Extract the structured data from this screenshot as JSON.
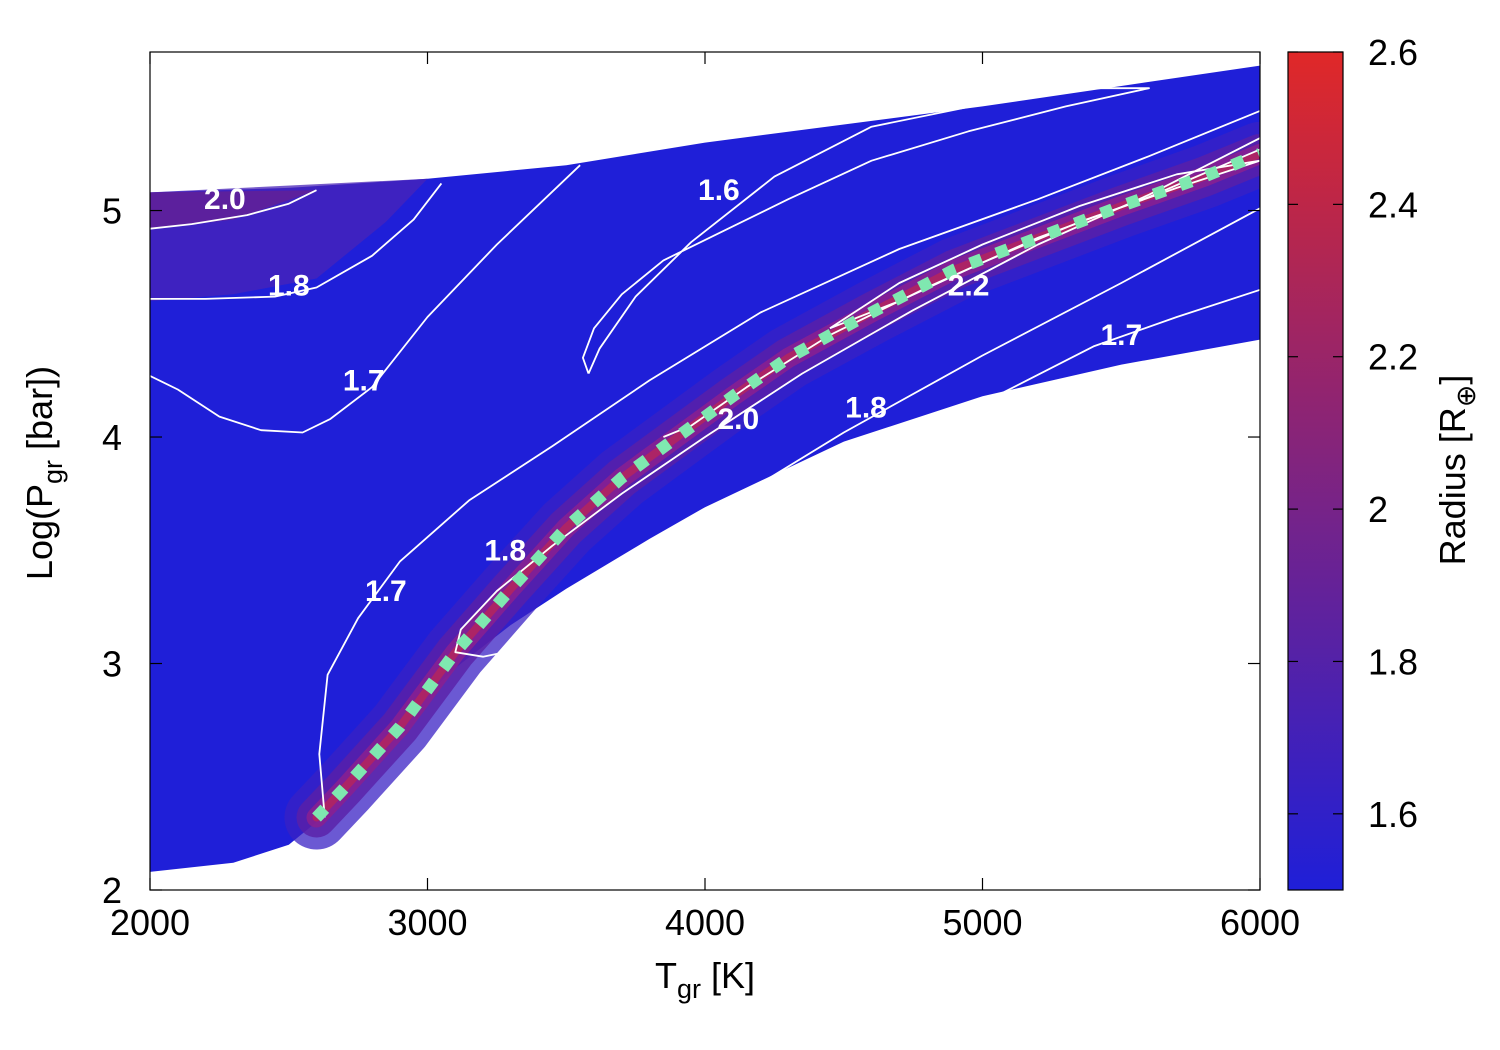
{
  "chart_data": {
    "type": "heatmap",
    "title": "",
    "xlabel": {
      "main": "T",
      "sub": "gr",
      "unit": " [K]"
    },
    "ylabel": {
      "pre": "Log(P",
      "sub": "gr",
      "post": " [bar])"
    },
    "colorbar_label": {
      "main": "Radius [R",
      "sub": "⊕",
      "post": "]"
    },
    "xlim": [
      2000,
      6000
    ],
    "ylim": [
      2,
      5.7
    ],
    "clim": [
      1.5,
      2.6
    ],
    "xticks": [
      2000,
      3000,
      4000,
      5000,
      6000
    ],
    "yticks": [
      2,
      3,
      4,
      5
    ],
    "cticks": [
      1.6,
      1.8,
      2,
      2.2,
      2.4,
      2.6
    ],
    "tick_labels": {
      "x": [
        "2000",
        "3000",
        "4000",
        "5000",
        "6000"
      ],
      "y": [
        "2",
        "3",
        "4",
        "5"
      ],
      "c": [
        "1.6",
        "1.8",
        "2",
        "2.2",
        "2.4",
        "2.6"
      ]
    },
    "colors": {
      "low": "#1f1fd8",
      "high": "#e02828",
      "contour": "#ffffff",
      "ridge_marker": "#7fe8b0"
    },
    "domain": {
      "upper": [
        [
          2000,
          5.08
        ],
        [
          2500,
          5.1
        ],
        [
          3000,
          5.14
        ],
        [
          3500,
          5.2
        ],
        [
          4000,
          5.3
        ],
        [
          4500,
          5.38
        ],
        [
          5000,
          5.46
        ],
        [
          5500,
          5.55
        ],
        [
          6000,
          5.64
        ]
      ],
      "lower": [
        [
          2000,
          2.08
        ],
        [
          2300,
          2.12
        ],
        [
          2500,
          2.2
        ],
        [
          2600,
          2.3
        ],
        [
          2700,
          2.47
        ],
        [
          2900,
          2.75
        ],
        [
          3100,
          2.98
        ],
        [
          3300,
          3.17
        ],
        [
          3500,
          3.33
        ],
        [
          3800,
          3.55
        ],
        [
          4000,
          3.69
        ],
        [
          4500,
          3.98
        ],
        [
          5000,
          4.18
        ],
        [
          5500,
          4.32
        ],
        [
          6000,
          4.43
        ]
      ]
    },
    "ridge_line": [
      [
        2600,
        2.32
      ],
      [
        2700,
        2.45
      ],
      [
        2900,
        2.72
      ],
      [
        3100,
        3.05
      ],
      [
        3300,
        3.33
      ],
      [
        3500,
        3.6
      ],
      [
        3700,
        3.82
      ],
      [
        3900,
        4.0
      ],
      [
        4100,
        4.18
      ],
      [
        4300,
        4.35
      ],
      [
        4600,
        4.55
      ],
      [
        4900,
        4.74
      ],
      [
        5200,
        4.88
      ],
      [
        5500,
        5.02
      ],
      [
        5800,
        5.15
      ],
      [
        6000,
        5.25
      ]
    ],
    "contours": [
      {
        "level": 2.0,
        "points": [
          [
            2000,
            4.92
          ],
          [
            2150,
            4.94
          ],
          [
            2350,
            4.98
          ],
          [
            2500,
            5.03
          ],
          [
            2600,
            5.09
          ]
        ]
      },
      {
        "level": 1.8,
        "points": [
          [
            2000,
            4.61
          ],
          [
            2200,
            4.61
          ],
          [
            2450,
            4.62
          ],
          [
            2600,
            4.66
          ],
          [
            2800,
            4.8
          ],
          [
            2950,
            4.96
          ],
          [
            3050,
            5.12
          ]
        ]
      },
      {
        "level": 1.7,
        "points": [
          [
            2000,
            4.27
          ],
          [
            2100,
            4.21
          ],
          [
            2250,
            4.09
          ],
          [
            2400,
            4.03
          ],
          [
            2550,
            4.02
          ],
          [
            2650,
            4.08
          ],
          [
            2800,
            4.22
          ],
          [
            3000,
            4.53
          ],
          [
            3250,
            4.85
          ],
          [
            3550,
            5.2
          ]
        ]
      },
      {
        "level": 1.6,
        "points": [
          [
            3580,
            4.28
          ],
          [
            3560,
            4.35
          ],
          [
            3600,
            4.48
          ],
          [
            3700,
            4.63
          ],
          [
            3850,
            4.78
          ],
          [
            4050,
            4.9
          ],
          [
            4300,
            5.05
          ],
          [
            4600,
            5.22
          ],
          [
            4950,
            5.35
          ],
          [
            5300,
            5.46
          ],
          [
            5600,
            5.54
          ],
          [
            5400,
            5.54
          ],
          [
            5000,
            5.47
          ],
          [
            4600,
            5.37
          ],
          [
            4250,
            5.15
          ],
          [
            3950,
            4.86
          ],
          [
            3750,
            4.62
          ],
          [
            3620,
            4.39
          ],
          [
            3580,
            4.28
          ]
        ]
      },
      {
        "level": 1.7,
        "points": [
          [
            2630,
            2.32
          ],
          [
            2610,
            2.6
          ],
          [
            2640,
            2.95
          ],
          [
            2750,
            3.2
          ],
          [
            2900,
            3.45
          ],
          [
            3150,
            3.72
          ],
          [
            3450,
            3.96
          ],
          [
            3800,
            4.25
          ],
          [
            4200,
            4.55
          ],
          [
            4700,
            4.83
          ],
          [
            5200,
            5.05
          ],
          [
            5600,
            5.24
          ],
          [
            6000,
            5.44
          ]
        ]
      },
      {
        "level": 1.8,
        "points": [
          [
            3320,
            3.06
          ],
          [
            3200,
            3.03
          ],
          [
            3100,
            3.05
          ],
          [
            3120,
            3.15
          ],
          [
            3250,
            3.32
          ],
          [
            3450,
            3.52
          ],
          [
            3700,
            3.75
          ],
          [
            4000,
            4.0
          ],
          [
            4350,
            4.28
          ],
          [
            4750,
            4.56
          ],
          [
            5200,
            4.85
          ],
          [
            5600,
            5.07
          ],
          [
            6000,
            5.32
          ]
        ]
      },
      {
        "level": 2.0,
        "points": [
          [
            3850,
            4.0
          ],
          [
            3950,
            4.05
          ],
          [
            4150,
            4.22
          ],
          [
            4450,
            4.45
          ],
          [
            4800,
            4.66
          ],
          [
            5200,
            4.88
          ],
          [
            5600,
            5.06
          ],
          [
            6000,
            5.27
          ]
        ]
      },
      {
        "level": 2.2,
        "points": [
          [
            4450,
            4.48
          ],
          [
            4700,
            4.6
          ],
          [
            5000,
            4.77
          ],
          [
            5350,
            4.95
          ],
          [
            5700,
            5.1
          ],
          [
            6000,
            5.22
          ],
          [
            5700,
            5.16
          ],
          [
            5350,
            5.02
          ],
          [
            5000,
            4.85
          ],
          [
            4700,
            4.68
          ],
          [
            4450,
            4.48
          ]
        ]
      },
      {
        "level": 1.8,
        "points": [
          [
            3810,
            3.44
          ],
          [
            4100,
            3.72
          ],
          [
            4500,
            4.02
          ],
          [
            5000,
            4.36
          ],
          [
            5500,
            4.68
          ],
          [
            6000,
            5.01
          ]
        ]
      },
      {
        "level": 1.7,
        "points": [
          [
            4600,
            3.9
          ],
          [
            5000,
            4.15
          ],
          [
            5400,
            4.4
          ],
          [
            5700,
            4.53
          ],
          [
            6000,
            4.65
          ]
        ]
      }
    ],
    "contour_labels": [
      {
        "text": "2.0",
        "x": 2270,
        "y": 5.05
      },
      {
        "text": "1.8",
        "x": 2500,
        "y": 4.67
      },
      {
        "text": "1.7",
        "x": 2770,
        "y": 4.25
      },
      {
        "text": "1.6",
        "x": 4050,
        "y": 5.09
      },
      {
        "text": "2.2",
        "x": 4950,
        "y": 4.67
      },
      {
        "text": "1.7",
        "x": 5500,
        "y": 4.45
      },
      {
        "text": "2.0",
        "x": 4120,
        "y": 4.08
      },
      {
        "text": "1.8",
        "x": 4580,
        "y": 4.13
      },
      {
        "text": "1.8",
        "x": 3280,
        "y": 3.5
      },
      {
        "text": "1.7",
        "x": 2850,
        "y": 3.32
      }
    ]
  }
}
